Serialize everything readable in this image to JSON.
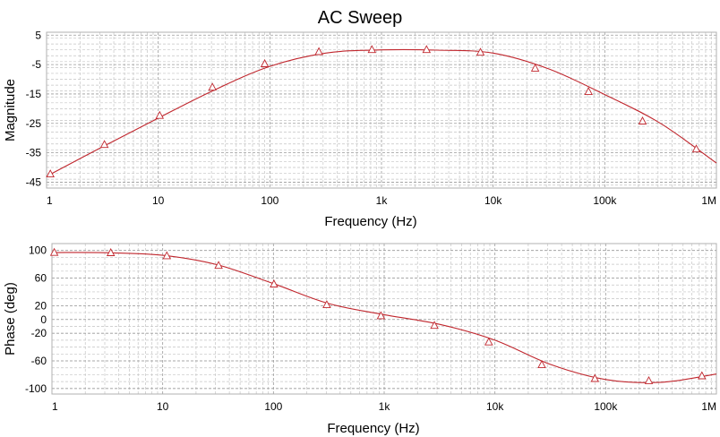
{
  "title": "AC Sweep",
  "colors": {
    "trace": "#c0262d"
  },
  "chart_data": [
    {
      "type": "line",
      "name_key": "magnitude",
      "xlabel": "Frequency (Hz)",
      "ylabel": "Magnitude",
      "xscale": "log",
      "xlim": [
        1,
        1000000
      ],
      "ylim": [
        -47,
        6
      ],
      "x_ticks": [
        1,
        10,
        100,
        1000,
        10000,
        100000,
        1000000
      ],
      "x_tick_labels": [
        "1",
        "10",
        "100",
        "1k",
        "10k",
        "100k",
        "1M"
      ],
      "y_ticks": [
        5,
        -5,
        -15,
        -25,
        -35,
        -45
      ],
      "y_tick_labels": [
        "5",
        "-5",
        "-15",
        "-25",
        "-35",
        "-45"
      ],
      "y_minor_step": 2,
      "grid": true,
      "marker": "triangle",
      "series": [
        {
          "x": [
            1,
            3.16,
            10,
            31.6,
            100,
            316,
            1000,
            3160,
            10000,
            31600,
            100000,
            316000,
            1000000
          ],
          "y": [
            -43,
            -33,
            -23.2,
            -13.7,
            -5.6,
            -1.1,
            0,
            -0.1,
            -1.1,
            -6.5,
            -15.2,
            -25,
            -38.5
          ]
        }
      ],
      "marker_points": [
        [
          1.08,
          -42.3
        ],
        [
          3.3,
          -32.3
        ],
        [
          10.3,
          -22.4
        ],
        [
          30.6,
          -12.8
        ],
        [
          90,
          -4.8
        ],
        [
          275,
          -0.7
        ],
        [
          820,
          0
        ],
        [
          2530,
          0
        ],
        [
          7700,
          -0.9
        ],
        [
          23800,
          -6.3
        ],
        [
          71500,
          -14.3
        ],
        [
          218000,
          -24.3
        ],
        [
          660000,
          -33.8
        ]
      ]
    },
    {
      "type": "line",
      "name_key": "phase",
      "xlabel": "Frequency (Hz)",
      "ylabel": "Phase (deg)",
      "xscale": "log",
      "xlim": [
        1,
        1000000
      ],
      "ylim": [
        -108,
        110
      ],
      "x_ticks": [
        1,
        10,
        100,
        1000,
        10000,
        100000,
        1000000
      ],
      "x_tick_labels": [
        "1",
        "10",
        "100",
        "1k",
        "10k",
        "100k",
        "1M"
      ],
      "y_ticks": [
        100,
        60,
        20,
        0,
        -20,
        -60,
        -100
      ],
      "y_tick_labels": [
        "100",
        "60",
        "20",
        "0",
        "-20",
        "-60",
        "-100"
      ],
      "y_minor_step": 10,
      "grid": true,
      "marker": "triangle",
      "series": [
        {
          "x": [
            1,
            3.16,
            10,
            31.6,
            100,
            316,
            1000,
            3160,
            10000,
            31600,
            100000,
            316000,
            1000000
          ],
          "y": [
            97,
            96.7,
            93,
            79,
            52,
            23,
            7,
            -7,
            -30,
            -65,
            -87,
            -91,
            -79
          ]
        }
      ],
      "marker_points": [
        [
          1.05,
          96.7
        ],
        [
          3.4,
          96.4
        ],
        [
          10.9,
          92
        ],
        [
          32,
          78
        ],
        [
          101,
          51
        ],
        [
          303,
          21
        ],
        [
          935,
          5
        ],
        [
          2840,
          -9
        ],
        [
          8800,
          -33
        ],
        [
          26500,
          -66
        ],
        [
          80000,
          -86
        ],
        [
          245000,
          -89
        ],
        [
          740000,
          -82
        ]
      ]
    }
  ]
}
